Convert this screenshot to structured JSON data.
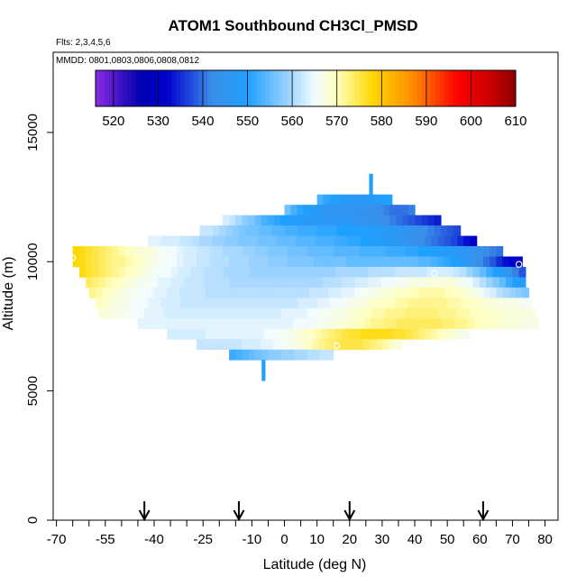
{
  "chart_data": {
    "type": "heatmap",
    "title": "ATOM1 Southbound CH3Cl_PMSD",
    "subtitle_flights": "Flts: 2,3,4,5,6",
    "subtitle_dates": "MMDD: 0801,0803,0806,0808,0812",
    "xlabel": "Latitude (deg N)",
    "ylabel": "Altitude (m)",
    "xlim": [
      -71,
      84
    ],
    "ylim": [
      0,
      18100
    ],
    "xticks": [
      -70,
      -55,
      -40,
      -25,
      -10,
      0,
      10,
      20,
      30,
      40,
      50,
      60,
      70,
      80
    ],
    "xtick_labels": [
      "-70",
      "-55",
      "-40",
      "-25",
      "-10",
      "0",
      "10",
      "20",
      "30",
      "40",
      "50",
      "60",
      "70",
      "80"
    ],
    "x_minor_ticks": [
      -65,
      -60,
      -50,
      -45,
      -35,
      -30,
      -20,
      -15,
      -5,
      5,
      15,
      25,
      35,
      45,
      55,
      65,
      75
    ],
    "yticks": [
      0,
      5000,
      10000,
      15000
    ],
    "ytick_labels": [
      "0",
      "5000",
      "10000",
      "15000"
    ],
    "arrows_latitude": [
      -43,
      -14,
      20,
      61
    ],
    "colorbar": {
      "min": 516,
      "max": 610,
      "ticks": [
        520,
        530,
        540,
        550,
        560,
        570,
        580,
        590,
        600,
        610
      ],
      "tick_labels": [
        "520",
        "530",
        "540",
        "550",
        "560",
        "570",
        "580",
        "590",
        "600",
        "610"
      ],
      "stops": [
        {
          "v": 516,
          "c": "#8a2be2"
        },
        {
          "v": 526,
          "c": "#0000b0"
        },
        {
          "v": 532,
          "c": "#0000cd"
        },
        {
          "v": 542,
          "c": "#3a8ee8"
        },
        {
          "v": 550,
          "c": "#1ea0ff"
        },
        {
          "v": 560,
          "c": "#a8d8ff"
        },
        {
          "v": 565,
          "c": "#f2fbff"
        },
        {
          "v": 570,
          "c": "#ffffbf"
        },
        {
          "v": 578,
          "c": "#ffd700"
        },
        {
          "v": 587,
          "c": "#ff8c00"
        },
        {
          "v": 597,
          "c": "#ff0000"
        },
        {
          "v": 604,
          "c": "#cd0000"
        },
        {
          "v": 610,
          "c": "#8b0000"
        }
      ]
    },
    "layers": [
      {
        "alt": 13200,
        "lat_start": 26,
        "lat_end": 27,
        "values": [
          550
        ]
      },
      {
        "alt": 12800,
        "lat_start": 26,
        "lat_end": 27,
        "values": [
          548
        ]
      },
      {
        "alt": 12400,
        "lat_start": 10,
        "lat_end": 33,
        "values": [
          553,
          551,
          549,
          548,
          547,
          547,
          546,
          546,
          547,
          548,
          549,
          550
        ]
      },
      {
        "alt": 12000,
        "lat_start": 0,
        "lat_end": 40,
        "values": [
          556,
          553,
          551,
          549,
          548,
          547,
          546,
          545,
          545,
          545,
          545,
          545,
          544,
          544,
          543,
          542,
          541,
          540,
          540,
          540,
          541
        ]
      },
      {
        "alt": 11600,
        "lat_start": -19,
        "lat_end": 48,
        "values": [
          563,
          562,
          560,
          558,
          557,
          555,
          553,
          552,
          551,
          550,
          549,
          548,
          548,
          547,
          547,
          547,
          546,
          546,
          546,
          546,
          545,
          545,
          544,
          544,
          543,
          542,
          541,
          540,
          539,
          538,
          537,
          536,
          535,
          534
        ]
      },
      {
        "alt": 11200,
        "lat_start": -26,
        "lat_end": 54,
        "values": [
          562,
          562,
          561,
          560,
          559,
          558,
          557,
          556,
          556,
          555,
          555,
          554,
          554,
          553,
          553,
          552,
          552,
          552,
          551,
          551,
          551,
          550,
          550,
          550,
          549,
          549,
          548,
          548,
          547,
          547,
          546,
          545,
          544,
          543,
          542,
          541,
          540,
          539,
          538,
          537
        ]
      },
      {
        "alt": 10800,
        "lat_start": -42,
        "lat_end": 59,
        "values": [
          564,
          564,
          563,
          563,
          563,
          562,
          562,
          561,
          560,
          560,
          559,
          559,
          558,
          558,
          557,
          557,
          557,
          556,
          556,
          556,
          555,
          555,
          555,
          554,
          554,
          554,
          553,
          553,
          553,
          552,
          552,
          551,
          551,
          550,
          549,
          549,
          548,
          547,
          546,
          545,
          544,
          543,
          542,
          541,
          540,
          539,
          538,
          537,
          535,
          533,
          531
        ]
      },
      {
        "alt": 10400,
        "lat_start": -65,
        "lat_end": 67,
        "values": [
          578,
          577,
          576,
          575,
          574,
          573,
          572,
          571,
          570,
          569,
          568,
          568,
          567,
          566,
          565,
          565,
          564,
          563,
          563,
          562,
          562,
          561,
          561,
          560,
          560,
          560,
          559,
          559,
          558,
          558,
          557,
          557,
          557,
          556,
          556,
          556,
          555,
          555,
          555,
          555,
          554,
          554,
          554,
          554,
          553,
          553,
          553,
          553,
          552,
          552,
          552,
          551,
          551,
          550,
          550,
          549,
          549,
          548,
          547,
          546,
          545,
          544,
          543,
          542,
          541,
          540
        ]
      },
      {
        "alt": 10000,
        "lat_start": -65,
        "lat_end": 73,
        "values": [
          578,
          577,
          576,
          575,
          574,
          573,
          572,
          572,
          571,
          570,
          569,
          568,
          567,
          566,
          565,
          565,
          564,
          563,
          563,
          562,
          562,
          561,
          561,
          561,
          560,
          560,
          560,
          559,
          559,
          559,
          558,
          558,
          558,
          557,
          557,
          557,
          557,
          556,
          556,
          556,
          556,
          556,
          555,
          555,
          555,
          555,
          555,
          555,
          555,
          555,
          555,
          555,
          555,
          554,
          554,
          553,
          552,
          551,
          550,
          548,
          546,
          544,
          542,
          540,
          538,
          535,
          533,
          531,
          529
        ]
      },
      {
        "alt": 9600,
        "lat_start": -63,
        "lat_end": 74,
        "values": [
          577,
          576,
          575,
          574,
          573,
          572,
          571,
          570,
          569,
          568,
          567,
          566,
          565,
          565,
          564,
          563,
          563,
          562,
          562,
          561,
          561,
          561,
          560,
          560,
          560,
          560,
          559,
          559,
          559,
          559,
          559,
          559,
          559,
          559,
          559,
          559,
          559,
          559,
          559,
          560,
          560,
          560,
          560,
          560,
          561,
          561,
          561,
          561,
          562,
          562,
          562,
          562,
          562,
          563,
          563,
          563,
          563,
          562,
          561,
          559,
          557,
          555,
          552,
          550,
          547,
          544,
          541,
          538
        ]
      },
      {
        "alt": 9200,
        "lat_start": -61,
        "lat_end": 74,
        "values": [
          574,
          573,
          572,
          571,
          570,
          569,
          568,
          567,
          566,
          566,
          565,
          564,
          564,
          563,
          563,
          562,
          562,
          562,
          561,
          561,
          561,
          561,
          560,
          560,
          560,
          560,
          560,
          560,
          560,
          560,
          560,
          560,
          560,
          560,
          560,
          560,
          561,
          561,
          561,
          562,
          562,
          563,
          563,
          564,
          564,
          565,
          565,
          566,
          566,
          567,
          567,
          567,
          568,
          568,
          568,
          568,
          567,
          566,
          565,
          563,
          561,
          559,
          557,
          555,
          552,
          550,
          548
        ]
      },
      {
        "alt": 8800,
        "lat_start": -60,
        "lat_end": 75,
        "values": [
          572,
          571,
          570,
          569,
          568,
          567,
          566,
          566,
          565,
          565,
          564,
          564,
          563,
          563,
          562,
          562,
          562,
          562,
          561,
          561,
          561,
          561,
          561,
          561,
          561,
          561,
          561,
          561,
          561,
          561,
          561,
          561,
          561,
          561,
          562,
          562,
          562,
          563,
          563,
          564,
          564,
          565,
          566,
          566,
          567,
          568,
          568,
          569,
          569,
          570,
          570,
          571,
          571,
          571,
          571,
          570,
          570,
          569,
          568,
          567,
          566,
          564,
          563,
          561,
          560,
          559,
          558,
          557
        ]
      },
      {
        "alt": 8400,
        "lat_start": -58,
        "lat_end": 76,
        "values": [
          570,
          569,
          568,
          567,
          567,
          566,
          565,
          565,
          564,
          564,
          563,
          563,
          563,
          562,
          562,
          562,
          562,
          562,
          562,
          562,
          562,
          562,
          562,
          562,
          562,
          562,
          562,
          562,
          562,
          562,
          562,
          563,
          563,
          563,
          564,
          564,
          565,
          565,
          566,
          567,
          567,
          568,
          569,
          569,
          570,
          570,
          571,
          571,
          572,
          572,
          572,
          572,
          572,
          572,
          571,
          571,
          570,
          570,
          569,
          569,
          568,
          568,
          567,
          567,
          567,
          566,
          566
        ]
      },
      {
        "alt": 8000,
        "lat_start": -57,
        "lat_end": 77,
        "values": [
          568,
          568,
          567,
          566,
          566,
          565,
          565,
          564,
          564,
          564,
          563,
          563,
          563,
          563,
          563,
          563,
          563,
          563,
          563,
          563,
          563,
          563,
          563,
          563,
          563,
          563,
          563,
          563,
          564,
          564,
          564,
          564,
          565,
          565,
          566,
          566,
          567,
          567,
          568,
          569,
          569,
          570,
          571,
          571,
          572,
          572,
          572,
          573,
          573,
          573,
          573,
          573,
          572,
          572,
          572,
          571,
          571,
          570,
          570,
          569,
          569,
          569,
          568,
          568,
          568,
          568,
          567
        ]
      },
      {
        "alt": 7600,
        "lat_start": -45,
        "lat_end": 78,
        "values": [
          564,
          564,
          564,
          564,
          564,
          564,
          564,
          564,
          564,
          564,
          564,
          564,
          564,
          564,
          564,
          564,
          564,
          564,
          564,
          564,
          564,
          564,
          564,
          564,
          565,
          565,
          565,
          566,
          566,
          567,
          567,
          568,
          569,
          569,
          570,
          571,
          572,
          572,
          573,
          573,
          574,
          574,
          574,
          574,
          574,
          574,
          574,
          573,
          573,
          572,
          572,
          571,
          570,
          570,
          569,
          569,
          568,
          568,
          568,
          567,
          567,
          567
        ]
      },
      {
        "alt": 7200,
        "lat_start": -36,
        "lat_end": 57,
        "values": [
          563,
          563,
          563,
          563,
          563,
          563,
          564,
          564,
          564,
          564,
          564,
          564,
          564,
          564,
          564,
          565,
          565,
          566,
          566,
          567,
          568,
          569,
          570,
          571,
          572,
          573,
          574,
          575,
          576,
          576,
          577,
          577,
          577,
          577,
          577,
          576,
          576,
          575,
          574,
          573,
          572,
          571,
          570,
          569,
          568,
          567,
          566
        ]
      },
      {
        "alt": 6800,
        "lat_start": -27,
        "lat_end": 36,
        "values": [
          562,
          562,
          562,
          562,
          562,
          562,
          562,
          563,
          563,
          563,
          564,
          564,
          565,
          566,
          566,
          567,
          568,
          570,
          571,
          572,
          573,
          574,
          575,
          575,
          575,
          575,
          574,
          573,
          572,
          571,
          569,
          568
        ]
      },
      {
        "alt": 6400,
        "lat_start": -17,
        "lat_end": 15,
        "values": [
          552,
          553,
          554,
          555,
          556,
          557,
          558,
          558,
          559,
          559,
          560,
          560,
          561,
          561,
          562,
          562
        ]
      },
      {
        "alt": 6000,
        "lat_start": -7,
        "lat_end": -6,
        "values": [
          550
        ]
      },
      {
        "alt": 5600,
        "lat_start": -7,
        "lat_end": -6,
        "values": [
          549
        ]
      }
    ],
    "highlighted_points": [
      {
        "lat": -65,
        "alt": 10150
      },
      {
        "lat": 8,
        "alt": 7050
      },
      {
        "lat": 16,
        "alt": 6750
      },
      {
        "lat": 46,
        "alt": 9550
      },
      {
        "lat": 72,
        "alt": 9900
      }
    ]
  }
}
